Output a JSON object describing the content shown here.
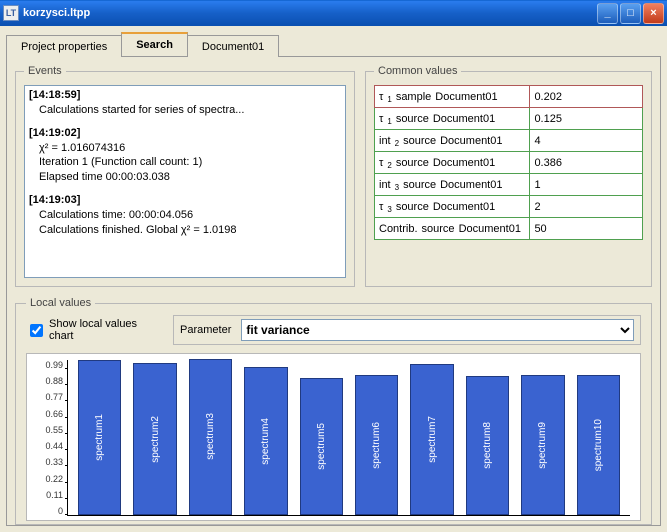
{
  "window": {
    "title": "korzysci.ltpp",
    "app_icon_text": "LT"
  },
  "tabs": [
    {
      "label": "Project properties",
      "active": false
    },
    {
      "label": "Search",
      "active": true
    },
    {
      "label": "Document01",
      "active": false
    }
  ],
  "events_legend": "Events",
  "events": [
    {
      "ts": "[14:18:59]",
      "lines": [
        "Calculations started for series of spectra..."
      ]
    },
    {
      "ts": "[14:19:02]",
      "lines": [
        "χ² = 1.016074316",
        "Iteration 1 (Function call count: 1)",
        "Elapsed time 00:00:03.038"
      ]
    },
    {
      "ts": "[14:19:03]",
      "lines": [
        "Calculations time: 00:00:04.056",
        "Calculations finished. Global  χ² = 1.0198"
      ]
    }
  ],
  "common_legend": "Common values",
  "common_rows": [
    {
      "sym": "τ",
      "sub": "1",
      "kind": "sample",
      "doc": "Document01",
      "value": "0.202",
      "highlight": true
    },
    {
      "sym": "τ",
      "sub": "1",
      "kind": "source",
      "doc": "Document01",
      "value": "0.125"
    },
    {
      "sym": "int",
      "sub": "2",
      "kind": "source",
      "doc": "Document01",
      "value": "4"
    },
    {
      "sym": "τ",
      "sub": "2",
      "kind": "source",
      "doc": "Document01",
      "value": "0.386"
    },
    {
      "sym": "int",
      "sub": "3",
      "kind": "source",
      "doc": "Document01",
      "value": "1"
    },
    {
      "sym": "τ",
      "sub": "3",
      "kind": "source",
      "doc": "Document01",
      "value": "2"
    },
    {
      "sym": "Contrib.",
      "sub": "",
      "kind": "source",
      "doc": "Document01",
      "value": "50"
    }
  ],
  "local_legend": "Local values",
  "show_local_values_label": "Show local values chart",
  "show_local_values_checked": true,
  "parameter_label": "Parameter",
  "parameter_value": "fit variance",
  "chart": {
    "type": "bar",
    "ylim": [
      0,
      1.0
    ],
    "ymax_plot": 1.05,
    "yticks": [
      0,
      0.11,
      0.22,
      0.33,
      0.44,
      0.55,
      0.66,
      0.77,
      0.88,
      0.99
    ],
    "ytick_labels": [
      "0",
      "0.11",
      "0.22",
      "0.33",
      "0.44",
      "0.55",
      "0.66",
      "0.77",
      "0.88",
      "0.99"
    ],
    "bar_color": "#3a63d0",
    "bar_border": "#203a80",
    "background": "#ffffff",
    "bars": [
      {
        "label": "spectrum1",
        "value": 1.05
      },
      {
        "label": "spectrum2",
        "value": 1.03
      },
      {
        "label": "spectrum3",
        "value": 1.06
      },
      {
        "label": "spectrum4",
        "value": 1.0
      },
      {
        "label": "spectrum5",
        "value": 0.93
      },
      {
        "label": "spectrum6",
        "value": 0.95
      },
      {
        "label": "spectrum7",
        "value": 1.02
      },
      {
        "label": "spectrum8",
        "value": 0.94
      },
      {
        "label": "spectrum9",
        "value": 0.95
      },
      {
        "label": "spectrum10",
        "value": 0.95
      }
    ]
  },
  "colors": {
    "titlebar_start": "#0a5bc4",
    "titlebar_end": "#0a4fb0",
    "panel_bg": "#ece9d8",
    "fieldset_border": "#b8b8b8",
    "input_border": "#7f9db9",
    "cv_border_normal": "#4fa04f",
    "cv_border_highlight": "#b05858"
  }
}
